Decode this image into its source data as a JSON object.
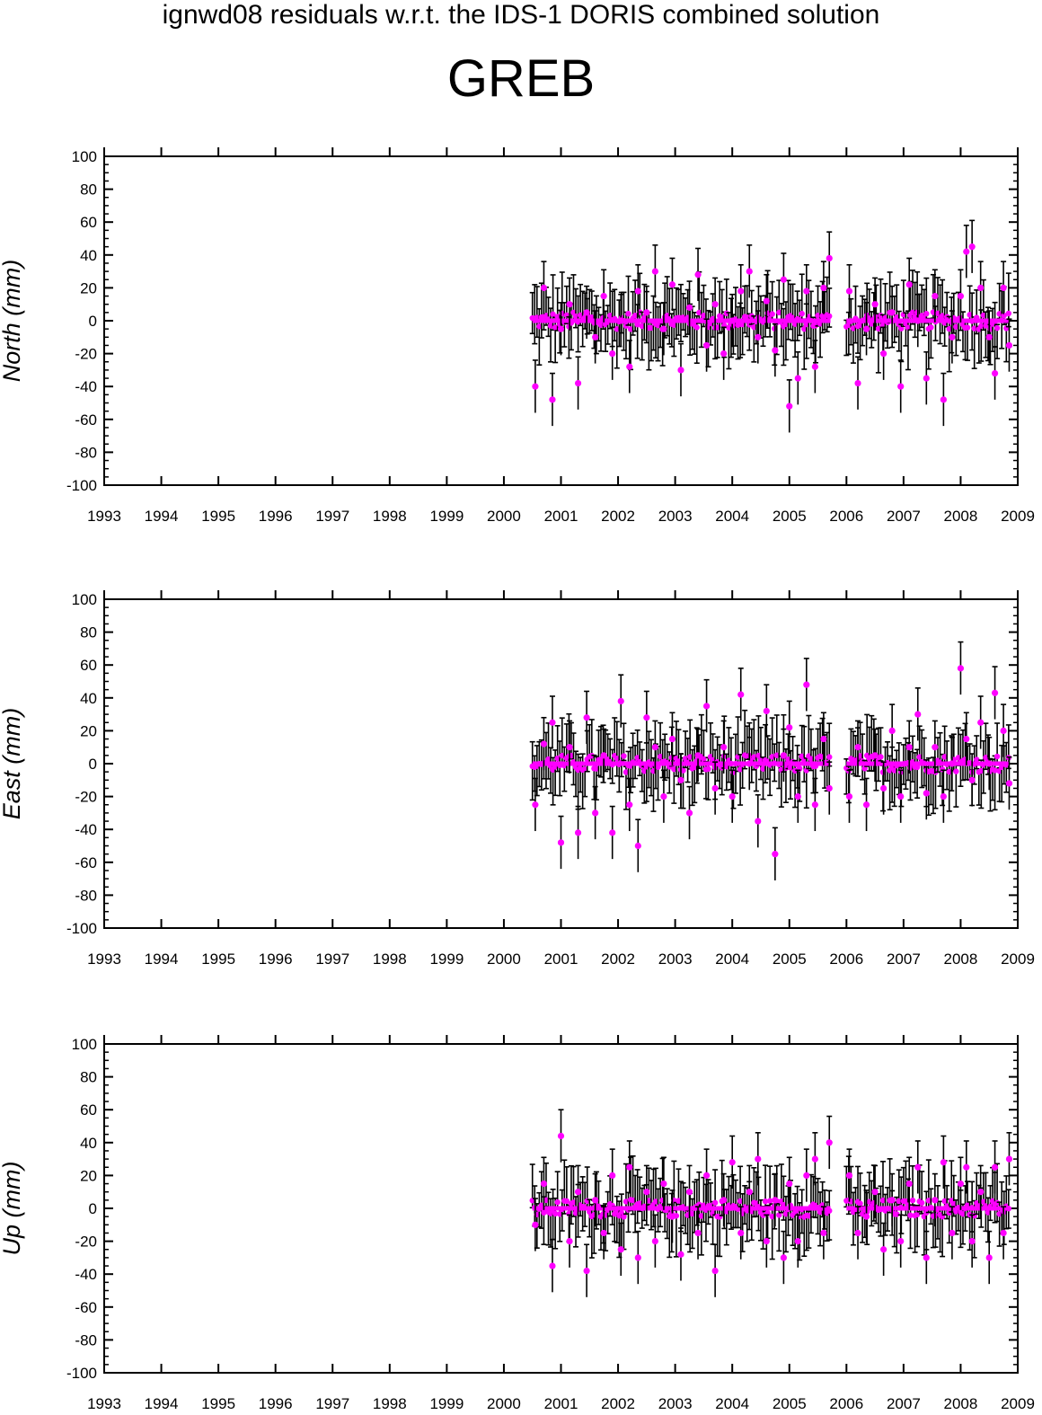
{
  "title": "ignwd08 residuals w.r.t. the IDS-1 DORIS combined solution",
  "subtitle": "GREB",
  "colors": {
    "marker": "#ff00ff",
    "errorbar": "#000000",
    "axis": "#000000"
  },
  "chart_data": [
    {
      "type": "scatter",
      "ylabel": "North (mm)",
      "xlim": [
        1993,
        2009
      ],
      "ylim": [
        -100,
        100
      ],
      "xticks": [
        "1993",
        "1994",
        "1995",
        "1996",
        "1997",
        "1998",
        "1999",
        "2000",
        "2001",
        "2002",
        "2003",
        "2004",
        "2005",
        "2006",
        "2007",
        "2008",
        "2009"
      ],
      "yticks": [
        "100",
        "80",
        "60",
        "40",
        "20",
        "0",
        "-20",
        "-40",
        "-60",
        "-80",
        "-100"
      ],
      "grid": false,
      "series": [
        {
          "x": [
            2000.55,
            2000.7,
            2000.85,
            2001.0,
            2001.15,
            2001.3,
            2001.45,
            2001.6,
            2001.75,
            2001.9,
            2002.05,
            2002.2,
            2002.35,
            2002.5,
            2002.65,
            2002.8,
            2002.95,
            2003.1,
            2003.25,
            2003.4,
            2003.55,
            2003.7,
            2003.85,
            2004.0,
            2004.15,
            2004.3,
            2004.45,
            2004.6,
            2004.75,
            2004.9,
            2005.0,
            2005.15,
            2005.3,
            2005.45,
            2005.6,
            2005.7,
            2006.05,
            2006.2,
            2006.35,
            2006.5,
            2006.65,
            2006.8,
            2006.95,
            2007.1,
            2007.25,
            2007.4,
            2007.55,
            2007.7,
            2007.85,
            2008.0,
            2008.1,
            2008.2,
            2008.35,
            2008.5,
            2008.6,
            2008.75,
            2008.85
          ],
          "y": [
            -40,
            20,
            -48,
            -5,
            10,
            -38,
            5,
            -10,
            15,
            -20,
            0,
            -28,
            18,
            5,
            30,
            -5,
            22,
            -30,
            8,
            28,
            -15,
            10,
            -20,
            0,
            18,
            30,
            -10,
            12,
            -18,
            25,
            -52,
            -35,
            18,
            -28,
            20,
            38,
            18,
            -38,
            -5,
            10,
            -20,
            5,
            -40,
            22,
            0,
            -35,
            15,
            -48,
            -10,
            15,
            42,
            45,
            20,
            -10,
            -32,
            20,
            -15
          ]
        }
      ]
    },
    {
      "type": "scatter",
      "ylabel": "East (mm)",
      "xlim": [
        1993,
        2009
      ],
      "ylim": [
        -100,
        100
      ],
      "xticks": [
        "1993",
        "1994",
        "1995",
        "1996",
        "1997",
        "1998",
        "1999",
        "2000",
        "2001",
        "2002",
        "2003",
        "2004",
        "2005",
        "2006",
        "2007",
        "2008",
        "2009"
      ],
      "yticks": [
        "100",
        "80",
        "60",
        "40",
        "20",
        "0",
        "-20",
        "-40",
        "-60",
        "-80",
        "-100"
      ],
      "grid": false,
      "series": [
        {
          "x": [
            2000.55,
            2000.7,
            2000.85,
            2001.0,
            2001.15,
            2001.3,
            2001.45,
            2001.6,
            2001.75,
            2001.9,
            2002.05,
            2002.2,
            2002.35,
            2002.5,
            2002.65,
            2002.8,
            2002.95,
            2003.1,
            2003.25,
            2003.4,
            2003.55,
            2003.7,
            2003.85,
            2004.0,
            2004.15,
            2004.3,
            2004.45,
            2004.6,
            2004.75,
            2004.9,
            2005.0,
            2005.15,
            2005.3,
            2005.45,
            2005.6,
            2005.7,
            2006.05,
            2006.2,
            2006.35,
            2006.5,
            2006.65,
            2006.8,
            2006.95,
            2007.1,
            2007.25,
            2007.4,
            2007.55,
            2007.7,
            2007.85,
            2008.0,
            2008.1,
            2008.2,
            2008.35,
            2008.5,
            2008.6,
            2008.75,
            2008.85
          ],
          "y": [
            -25,
            12,
            25,
            -48,
            10,
            -42,
            28,
            -30,
            5,
            -42,
            38,
            -25,
            -50,
            28,
            10,
            -20,
            15,
            -10,
            -30,
            5,
            35,
            -15,
            10,
            -20,
            42,
            0,
            -35,
            32,
            -55,
            5,
            22,
            -20,
            48,
            -25,
            15,
            -15,
            -20,
            10,
            -25,
            5,
            -15,
            20,
            -20,
            10,
            30,
            -18,
            10,
            -20,
            0,
            58,
            15,
            -10,
            25,
            0,
            43,
            20,
            -12
          ]
        }
      ]
    },
    {
      "type": "scatter",
      "ylabel": "Up (mm)",
      "xlim": [
        1993,
        2009
      ],
      "ylim": [
        -100,
        100
      ],
      "xticks": [
        "1993",
        "1994",
        "1995",
        "1996",
        "1997",
        "1998",
        "1999",
        "2000",
        "2001",
        "2002",
        "2003",
        "2004",
        "2005",
        "2006",
        "2007",
        "2008",
        "2009"
      ],
      "yticks": [
        "100",
        "80",
        "60",
        "40",
        "20",
        "0",
        "-20",
        "-40",
        "-60",
        "-80",
        "-100"
      ],
      "grid": false,
      "series": [
        {
          "x": [
            2000.55,
            2000.7,
            2000.85,
            2001.0,
            2001.15,
            2001.3,
            2001.45,
            2001.6,
            2001.75,
            2001.9,
            2002.05,
            2002.2,
            2002.35,
            2002.5,
            2002.65,
            2002.8,
            2002.95,
            2003.1,
            2003.25,
            2003.4,
            2003.55,
            2003.7,
            2003.85,
            2004.0,
            2004.15,
            2004.3,
            2004.45,
            2004.6,
            2004.75,
            2004.9,
            2005.0,
            2005.15,
            2005.3,
            2005.45,
            2005.6,
            2005.7,
            2006.05,
            2006.2,
            2006.35,
            2006.5,
            2006.65,
            2006.8,
            2006.95,
            2007.1,
            2007.25,
            2007.4,
            2007.55,
            2007.7,
            2007.85,
            2008.0,
            2008.1,
            2008.2,
            2008.35,
            2008.5,
            2008.6,
            2008.75,
            2008.85
          ],
          "y": [
            -10,
            15,
            -35,
            44,
            -20,
            10,
            -38,
            5,
            -15,
            20,
            -25,
            25,
            -30,
            10,
            -20,
            15,
            -5,
            -28,
            10,
            -15,
            20,
            -38,
            5,
            28,
            -15,
            10,
            30,
            -20,
            5,
            -30,
            15,
            -20,
            20,
            30,
            -15,
            40,
            20,
            -15,
            -5,
            10,
            -25,
            5,
            -20,
            15,
            25,
            -30,
            5,
            28,
            -15,
            15,
            25,
            -20,
            10,
            -30,
            25,
            -15,
            30
          ]
        }
      ]
    }
  ]
}
